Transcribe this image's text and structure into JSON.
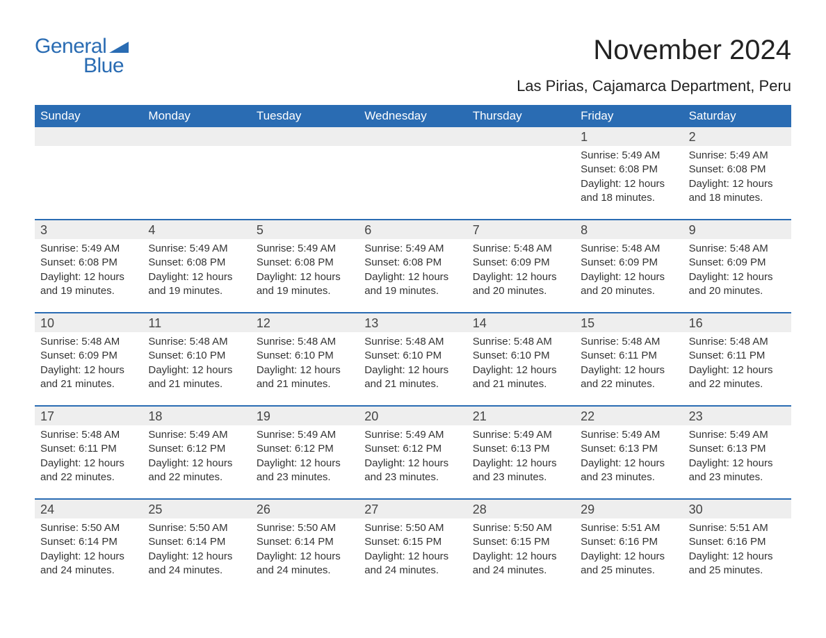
{
  "logo": {
    "text1": "General",
    "text2": "Blue"
  },
  "title": "November 2024",
  "location": "Las Pirias, Cajamarca Department, Peru",
  "colors": {
    "header_bg": "#2a6cb3",
    "header_text": "#ffffff",
    "daynum_bg": "#eeeeee",
    "week_border": "#2a6cb3",
    "body_text": "#333333",
    "logo_color": "#2a6cb3"
  },
  "day_names": [
    "Sunday",
    "Monday",
    "Tuesday",
    "Wednesday",
    "Thursday",
    "Friday",
    "Saturday"
  ],
  "weeks": [
    [
      null,
      null,
      null,
      null,
      null,
      {
        "n": "1",
        "sunrise": "5:49 AM",
        "sunset": "6:08 PM",
        "daylight": "12 hours and 18 minutes."
      },
      {
        "n": "2",
        "sunrise": "5:49 AM",
        "sunset": "6:08 PM",
        "daylight": "12 hours and 18 minutes."
      }
    ],
    [
      {
        "n": "3",
        "sunrise": "5:49 AM",
        "sunset": "6:08 PM",
        "daylight": "12 hours and 19 minutes."
      },
      {
        "n": "4",
        "sunrise": "5:49 AM",
        "sunset": "6:08 PM",
        "daylight": "12 hours and 19 minutes."
      },
      {
        "n": "5",
        "sunrise": "5:49 AM",
        "sunset": "6:08 PM",
        "daylight": "12 hours and 19 minutes."
      },
      {
        "n": "6",
        "sunrise": "5:49 AM",
        "sunset": "6:08 PM",
        "daylight": "12 hours and 19 minutes."
      },
      {
        "n": "7",
        "sunrise": "5:48 AM",
        "sunset": "6:09 PM",
        "daylight": "12 hours and 20 minutes."
      },
      {
        "n": "8",
        "sunrise": "5:48 AM",
        "sunset": "6:09 PM",
        "daylight": "12 hours and 20 minutes."
      },
      {
        "n": "9",
        "sunrise": "5:48 AM",
        "sunset": "6:09 PM",
        "daylight": "12 hours and 20 minutes."
      }
    ],
    [
      {
        "n": "10",
        "sunrise": "5:48 AM",
        "sunset": "6:09 PM",
        "daylight": "12 hours and 21 minutes."
      },
      {
        "n": "11",
        "sunrise": "5:48 AM",
        "sunset": "6:10 PM",
        "daylight": "12 hours and 21 minutes."
      },
      {
        "n": "12",
        "sunrise": "5:48 AM",
        "sunset": "6:10 PM",
        "daylight": "12 hours and 21 minutes."
      },
      {
        "n": "13",
        "sunrise": "5:48 AM",
        "sunset": "6:10 PM",
        "daylight": "12 hours and 21 minutes."
      },
      {
        "n": "14",
        "sunrise": "5:48 AM",
        "sunset": "6:10 PM",
        "daylight": "12 hours and 21 minutes."
      },
      {
        "n": "15",
        "sunrise": "5:48 AM",
        "sunset": "6:11 PM",
        "daylight": "12 hours and 22 minutes."
      },
      {
        "n": "16",
        "sunrise": "5:48 AM",
        "sunset": "6:11 PM",
        "daylight": "12 hours and 22 minutes."
      }
    ],
    [
      {
        "n": "17",
        "sunrise": "5:48 AM",
        "sunset": "6:11 PM",
        "daylight": "12 hours and 22 minutes."
      },
      {
        "n": "18",
        "sunrise": "5:49 AM",
        "sunset": "6:12 PM",
        "daylight": "12 hours and 22 minutes."
      },
      {
        "n": "19",
        "sunrise": "5:49 AM",
        "sunset": "6:12 PM",
        "daylight": "12 hours and 23 minutes."
      },
      {
        "n": "20",
        "sunrise": "5:49 AM",
        "sunset": "6:12 PM",
        "daylight": "12 hours and 23 minutes."
      },
      {
        "n": "21",
        "sunrise": "5:49 AM",
        "sunset": "6:13 PM",
        "daylight": "12 hours and 23 minutes."
      },
      {
        "n": "22",
        "sunrise": "5:49 AM",
        "sunset": "6:13 PM",
        "daylight": "12 hours and 23 minutes."
      },
      {
        "n": "23",
        "sunrise": "5:49 AM",
        "sunset": "6:13 PM",
        "daylight": "12 hours and 23 minutes."
      }
    ],
    [
      {
        "n": "24",
        "sunrise": "5:50 AM",
        "sunset": "6:14 PM",
        "daylight": "12 hours and 24 minutes."
      },
      {
        "n": "25",
        "sunrise": "5:50 AM",
        "sunset": "6:14 PM",
        "daylight": "12 hours and 24 minutes."
      },
      {
        "n": "26",
        "sunrise": "5:50 AM",
        "sunset": "6:14 PM",
        "daylight": "12 hours and 24 minutes."
      },
      {
        "n": "27",
        "sunrise": "5:50 AM",
        "sunset": "6:15 PM",
        "daylight": "12 hours and 24 minutes."
      },
      {
        "n": "28",
        "sunrise": "5:50 AM",
        "sunset": "6:15 PM",
        "daylight": "12 hours and 24 minutes."
      },
      {
        "n": "29",
        "sunrise": "5:51 AM",
        "sunset": "6:16 PM",
        "daylight": "12 hours and 25 minutes."
      },
      {
        "n": "30",
        "sunrise": "5:51 AM",
        "sunset": "6:16 PM",
        "daylight": "12 hours and 25 minutes."
      }
    ]
  ],
  "labels": {
    "sunrise": "Sunrise:",
    "sunset": "Sunset:",
    "daylight": "Daylight:"
  }
}
